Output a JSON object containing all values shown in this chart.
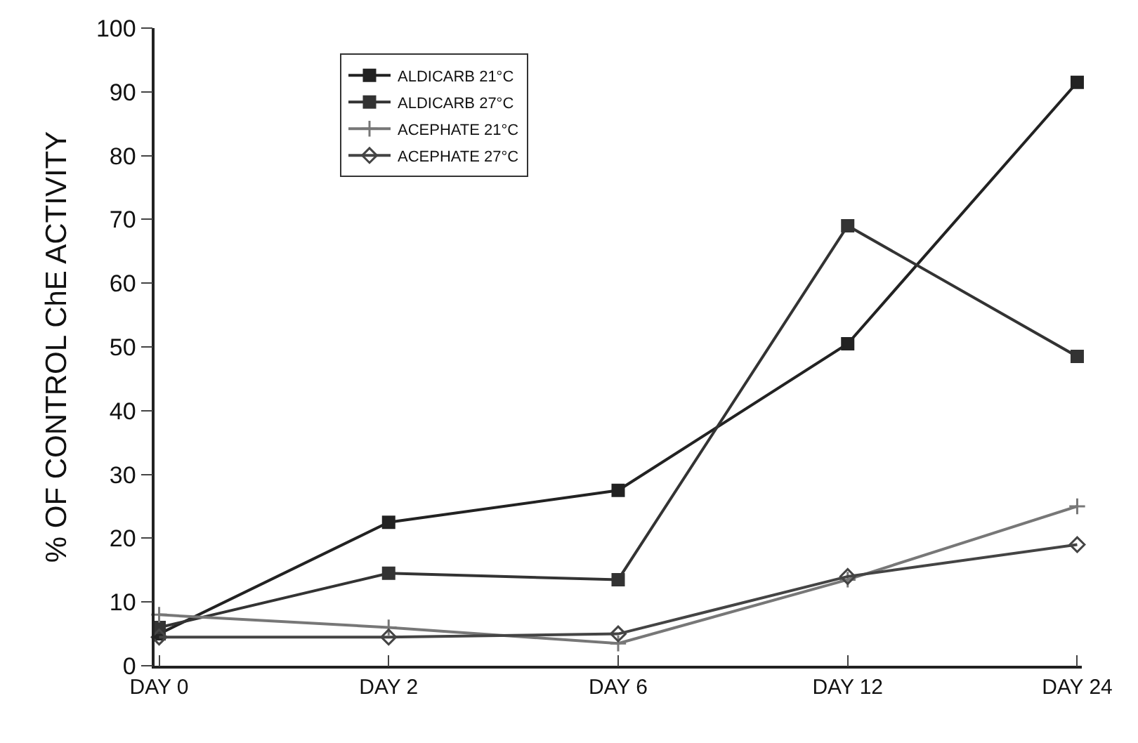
{
  "chart_data": {
    "type": "line",
    "ylabel": "% OF CONTROL ChE ACTIVITY",
    "categories": [
      "DAY 0",
      "DAY 2",
      "DAY 6",
      "DAY 12",
      "DAY 24"
    ],
    "series": [
      {
        "name": "ALDICARB 21°C",
        "color": "#222222",
        "marker": "square",
        "values": [
          5,
          22.5,
          27.5,
          50.5,
          91.5
        ]
      },
      {
        "name": "ALDICARB 27°C",
        "color": "#333333",
        "marker": "square",
        "values": [
          6,
          14.5,
          13.5,
          69,
          48.5
        ]
      },
      {
        "name": "ACEPHATE 21°C",
        "color": "#777777",
        "marker": "cross",
        "values": [
          8,
          6,
          3.5,
          13.5,
          25
        ]
      },
      {
        "name": "ACEPHATE 27°C",
        "color": "#444444",
        "marker": "diamond",
        "values": [
          4.5,
          4.5,
          5,
          14,
          19
        ]
      }
    ],
    "ylim": [
      0,
      100
    ],
    "yticks": [
      0,
      10,
      20,
      30,
      40,
      50,
      60,
      70,
      80,
      90,
      100
    ],
    "legend": "top left",
    "line_style": "solid"
  }
}
